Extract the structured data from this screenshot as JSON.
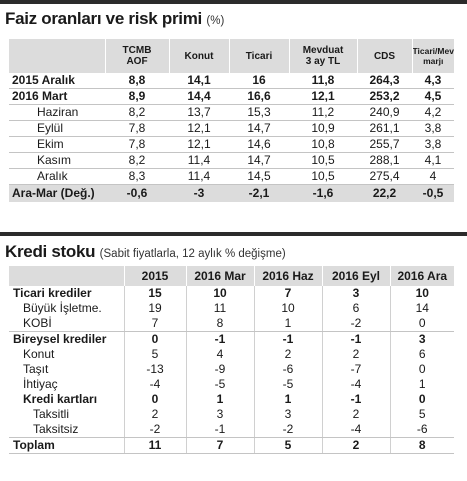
{
  "section1": {
    "title": "Faiz oranları ve risk primi",
    "subtitle": "(%)",
    "columns": [
      "TCMB AOF",
      "Konut",
      "Ticari",
      "Mevduat 3 ay TL",
      "CDS",
      "Ticari/Mevduat marjı"
    ],
    "column_lines": [
      [
        "TCMB",
        "AOF"
      ],
      [
        "Konut"
      ],
      [
        "Ticari"
      ],
      [
        "Mevduat",
        "3 ay TL"
      ],
      [
        "CDS"
      ],
      [
        "Ticari/Mevduat",
        "marjı"
      ]
    ],
    "rows": [
      {
        "label": "2015 Aralık",
        "values": [
          "8,8",
          "14,1",
          "16",
          "11,8",
          "264,3",
          "4,3"
        ]
      },
      {
        "label": "2016 Mart",
        "values": [
          "8,9",
          "14,4",
          "16,6",
          "12,1",
          "253,2",
          "4,5"
        ]
      },
      {
        "label": "Haziran",
        "values": [
          "8,2",
          "13,7",
          "15,3",
          "11,2",
          "240,9",
          "4,2"
        ]
      },
      {
        "label": "Eylül",
        "values": [
          "7,8",
          "12,1",
          "14,7",
          "10,9",
          "261,1",
          "3,8"
        ]
      },
      {
        "label": "Ekim",
        "values": [
          "7,8",
          "12,1",
          "14,6",
          "10,8",
          "255,7",
          "3,8"
        ]
      },
      {
        "label": "Kasım",
        "values": [
          "8,2",
          "11,4",
          "14,7",
          "10,5",
          "288,1",
          "4,1"
        ]
      },
      {
        "label": "Aralık",
        "values": [
          "8,3",
          "11,4",
          "14,5",
          "10,5",
          "275,4",
          "4"
        ]
      },
      {
        "label": "Ara-Mar (Değ.)",
        "values": [
          "-0,6",
          "-3",
          "-2,1",
          "-1,6",
          "22,2",
          "-0,5"
        ]
      }
    ]
  },
  "section2": {
    "title": "Kredi stoku",
    "subtitle": "(Sabit fiyatlarla, 12 aylık % değişme)",
    "columns": [
      "2015",
      "2016 Mar",
      "2016 Haz",
      "2016 Eyl",
      "2016 Ara"
    ],
    "rows": [
      {
        "label": "Ticari krediler",
        "values": [
          "15",
          "10",
          "7",
          "3",
          "10"
        ]
      },
      {
        "label": "Büyük İşletme.",
        "values": [
          "19",
          "11",
          "10",
          "6",
          "14"
        ]
      },
      {
        "label": "KOBİ",
        "values": [
          "7",
          "8",
          "1",
          "-2",
          "0"
        ]
      },
      {
        "label": "Bireysel krediler",
        "values": [
          "0",
          "-1",
          "-1",
          "-1",
          "3"
        ]
      },
      {
        "label": "Konut",
        "values": [
          "5",
          "4",
          "2",
          "2",
          "6"
        ]
      },
      {
        "label": "Taşıt",
        "values": [
          "-13",
          "-9",
          "-6",
          "-7",
          "0"
        ]
      },
      {
        "label": "İhtiyaç",
        "values": [
          "-4",
          "-5",
          "-5",
          "-4",
          "1"
        ]
      },
      {
        "label": "Kredi kartları",
        "values": [
          "0",
          "1",
          "1",
          "-1",
          "0"
        ]
      },
      {
        "label": "Taksitli",
        "values": [
          "2",
          "3",
          "3",
          "2",
          "5"
        ]
      },
      {
        "label": "Taksitsiz",
        "values": [
          "-2",
          "-1",
          "-2",
          "-4",
          "-6"
        ]
      },
      {
        "label": "Toplam",
        "values": [
          "11",
          "7",
          "5",
          "2",
          "8"
        ]
      }
    ]
  }
}
